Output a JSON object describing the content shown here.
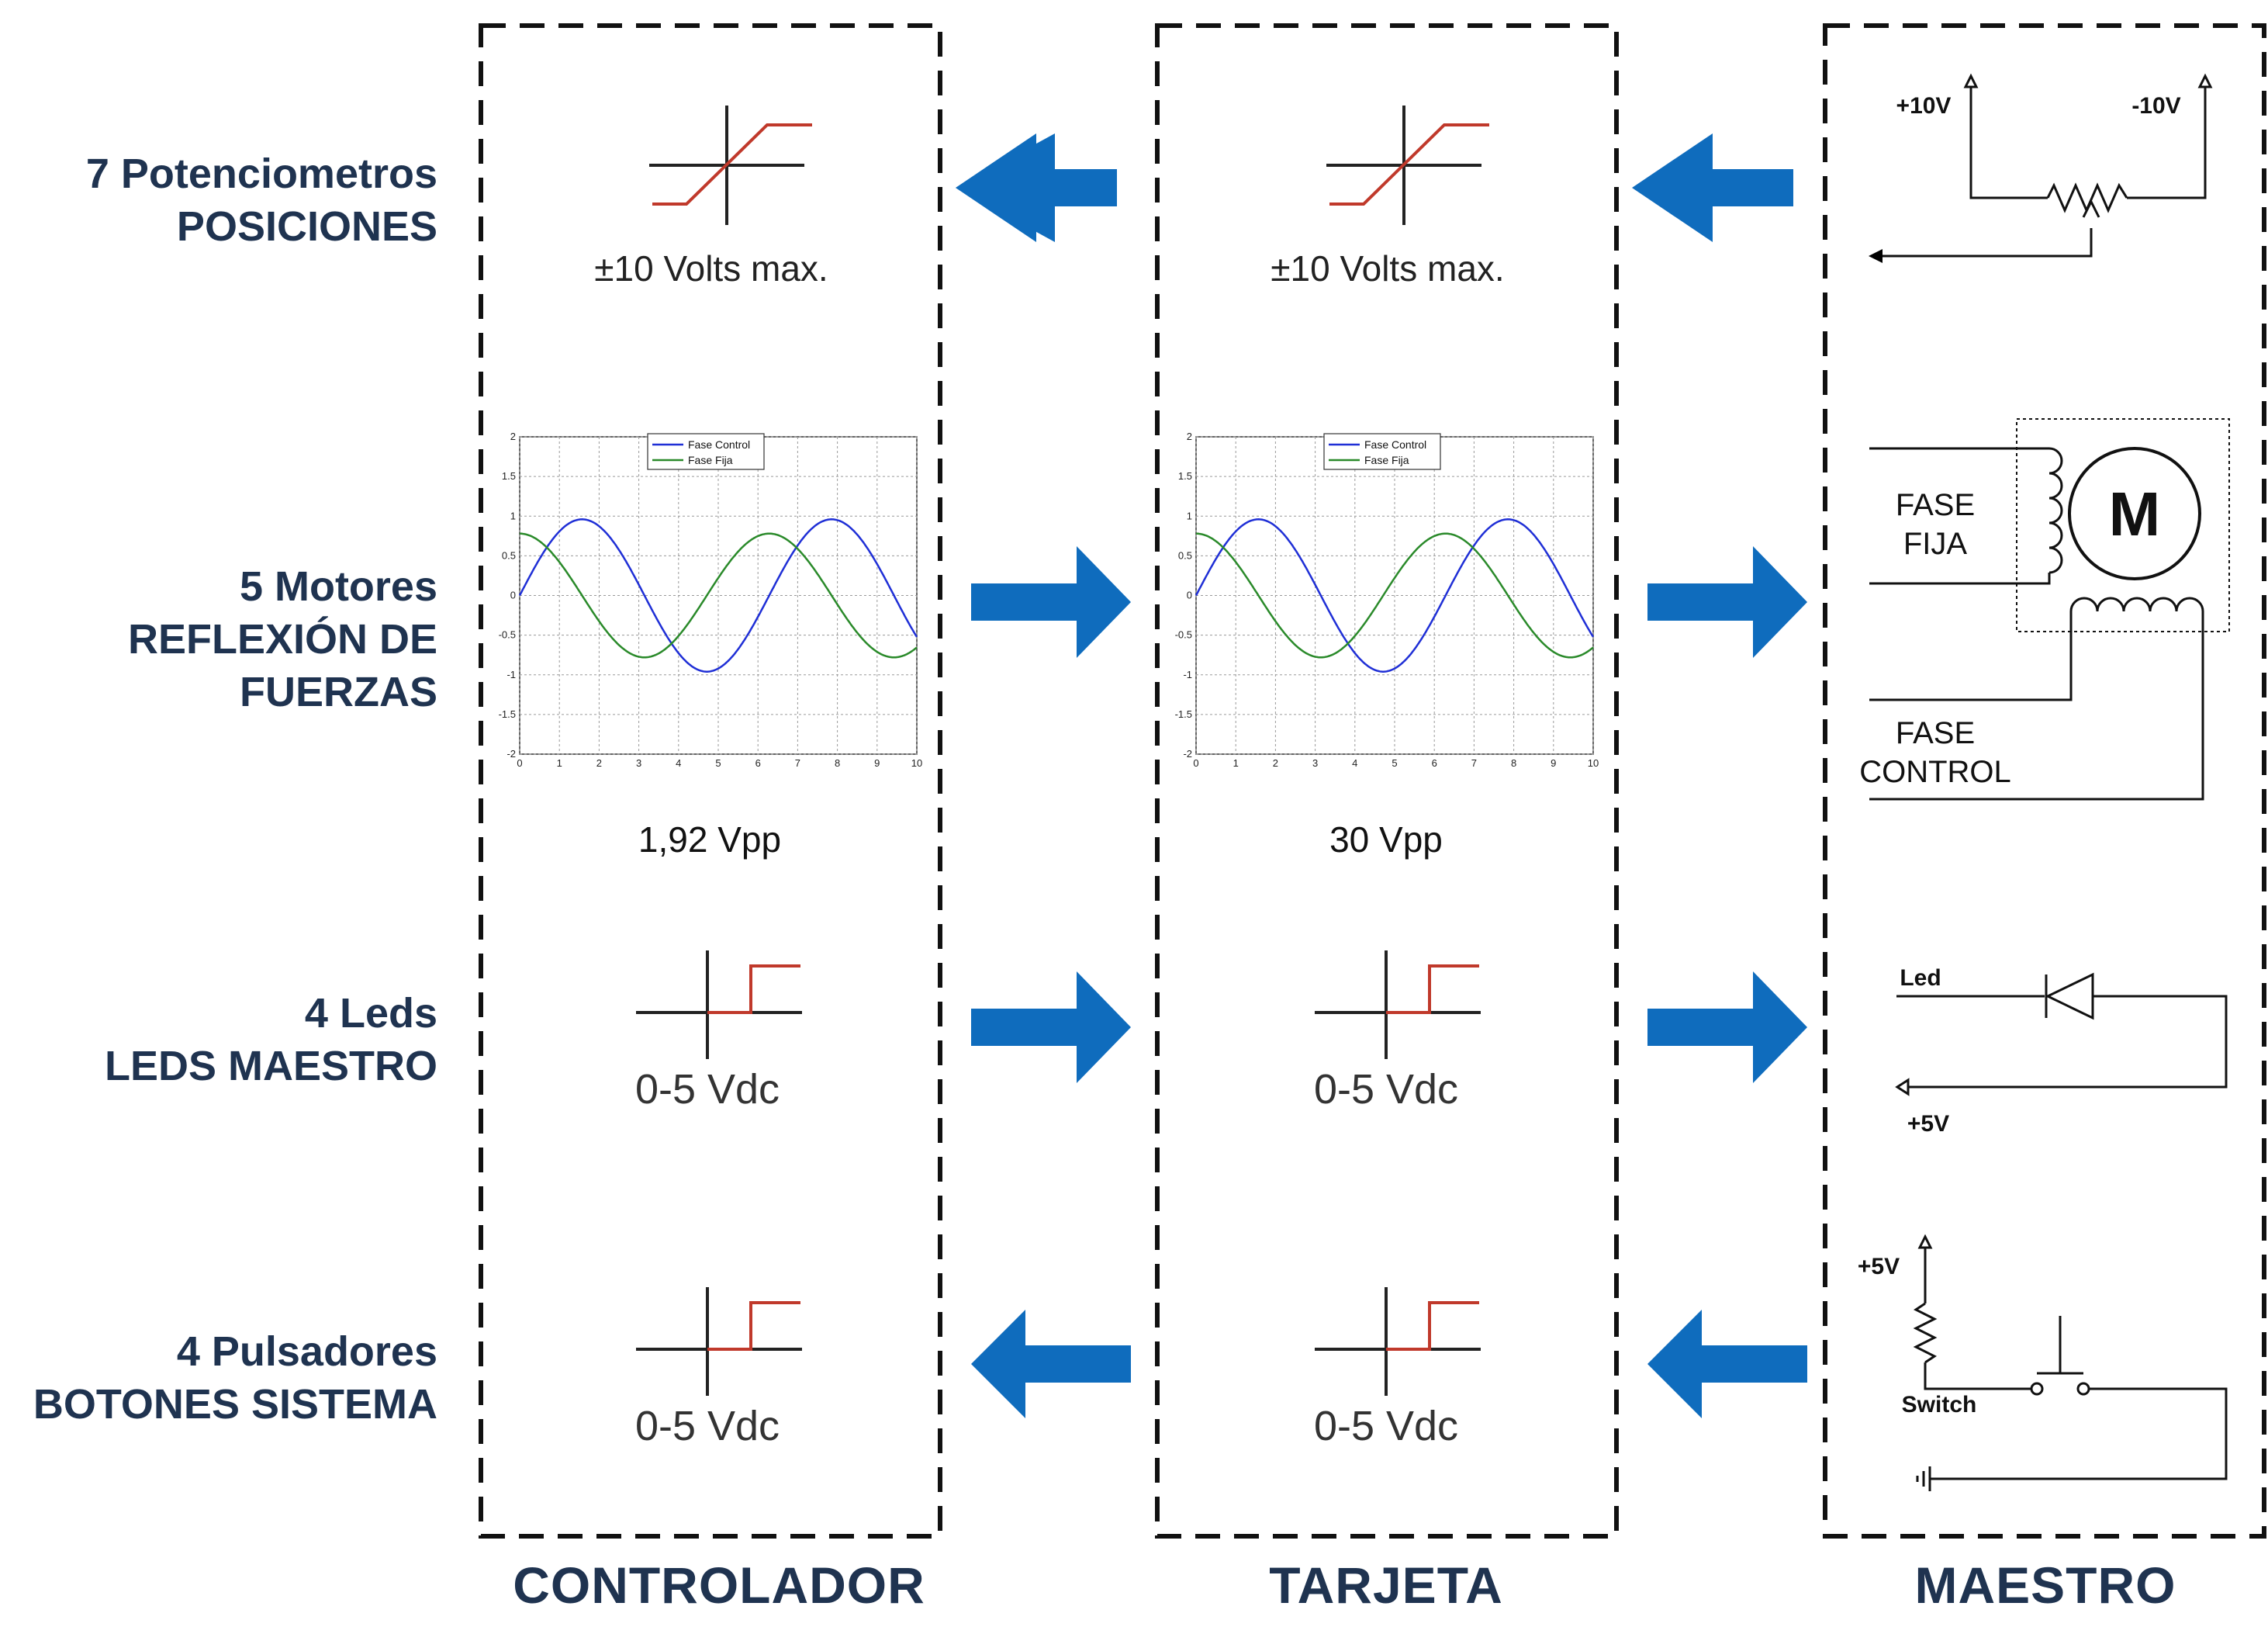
{
  "rows": [
    {
      "title": "7 Potenciometros",
      "lines": [
        "POSICIONES"
      ]
    },
    {
      "title": "5 Motores",
      "lines": [
        "REFLEXIÓN DE",
        "FUERZAS"
      ]
    },
    {
      "title": "4 Leds",
      "lines": [
        "LEDS MAESTRO"
      ]
    },
    {
      "title": "4 Pulsadores",
      "lines": [
        "BOTONES SISTEMA"
      ]
    }
  ],
  "columns": {
    "controlador": "CONTROLADOR",
    "tarjeta": "TARJETA",
    "maestro": "MAESTRO"
  },
  "signals": {
    "pot_range": "±10 Volts max.",
    "motor_controlador_vpp": "1,92 Vpp",
    "motor_tarjeta_vpp": "30 Vpp",
    "digital_range": "0-5 Vdc"
  },
  "maestro": {
    "pot_pos": "+10V",
    "pot_neg": "-10V",
    "fase_fija_1": "FASE",
    "fase_fija_2": "FIJA",
    "motor_letter": "M",
    "fase_control_1": "FASE",
    "fase_control_2": "CONTROL",
    "led_label": "Led",
    "led_supply": "+5V",
    "switch_supply": "+5V",
    "switch_label": "Switch"
  },
  "chart_data": [
    {
      "type": "line",
      "legend": [
        "Fase Control",
        "Fase Fija"
      ],
      "legend_position": "top-center",
      "grid": true,
      "xlim": [
        0,
        10
      ],
      "ylim": [
        -2,
        2
      ],
      "x_ticks": [
        "0",
        "1",
        "2",
        "3",
        "4",
        "5",
        "6",
        "7",
        "8",
        "9",
        "10"
      ],
      "y_ticks": [
        "2",
        "1.5",
        "1",
        "0.5",
        "0",
        "-0.5",
        "-1",
        "-1.5",
        "-2"
      ],
      "series": [
        {
          "name": "Fase Control",
          "color": "#1f2fd6",
          "function": "0.96*sin(x)",
          "amplitude": 0.96
        },
        {
          "name": "Fase Fija",
          "color": "#2a8a2a",
          "function": "0.78*cos(x)",
          "amplitude": 0.78
        }
      ]
    },
    {
      "type": "line",
      "legend": [
        "Fase Control",
        "Fase Fija"
      ],
      "legend_position": "top-center",
      "grid": true,
      "xlim": [
        0,
        10
      ],
      "ylim": [
        -2,
        2
      ],
      "x_ticks": [
        "0",
        "1",
        "2",
        "3",
        "4",
        "5",
        "6",
        "7",
        "8",
        "9",
        "10"
      ],
      "y_ticks": [
        "2",
        "1.5",
        "1",
        "0.5",
        "0",
        "-0.5",
        "-1",
        "-1.5",
        "-2"
      ],
      "series": [
        {
          "name": "Fase Control",
          "color": "#1f2fd6",
          "function": "0.96*sin(x)",
          "amplitude": 0.96
        },
        {
          "name": "Fase Fija",
          "color": "#2a8a2a",
          "function": "0.78*cos(x)",
          "amplitude": 0.78
        }
      ]
    }
  ],
  "colors": {
    "label": "#1f3350",
    "arrow": "#0f6cbd",
    "transfer_curve": "#c0392b",
    "control_wave": "#1f2fd6",
    "fixed_wave": "#2a8a2a"
  }
}
